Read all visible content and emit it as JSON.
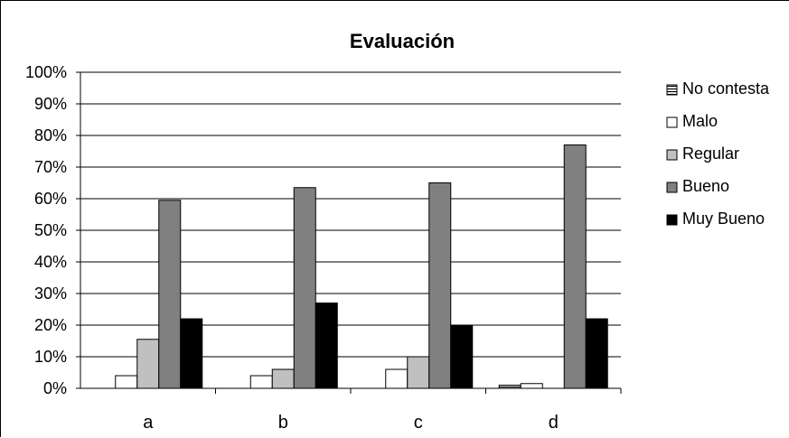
{
  "chart_data": {
    "type": "bar",
    "title": "Evaluación",
    "categories": [
      "a",
      "b",
      "c",
      "d"
    ],
    "ylim": [
      0,
      100
    ],
    "yticks": [
      "0%",
      "10%",
      "20%",
      "30%",
      "40%",
      "50%",
      "60%",
      "70%",
      "80%",
      "90%",
      "100%"
    ],
    "grid": true,
    "legend_position": "right",
    "series": [
      {
        "name": "No contesta",
        "values": [
          0,
          0,
          0,
          1
        ],
        "color": "#ffffff",
        "pattern": "horizontal-lines"
      },
      {
        "name": "Malo",
        "values": [
          4,
          4,
          6,
          1.5
        ],
        "color": "#ffffff"
      },
      {
        "name": "Regular",
        "values": [
          15.5,
          6,
          10,
          0
        ],
        "color": "#c0c0c0"
      },
      {
        "name": "Bueno",
        "values": [
          59.5,
          63.5,
          65,
          77
        ],
        "color": "#808080"
      },
      {
        "name": "Muy Bueno",
        "values": [
          22,
          27,
          20,
          22
        ],
        "color": "#000000"
      }
    ]
  }
}
